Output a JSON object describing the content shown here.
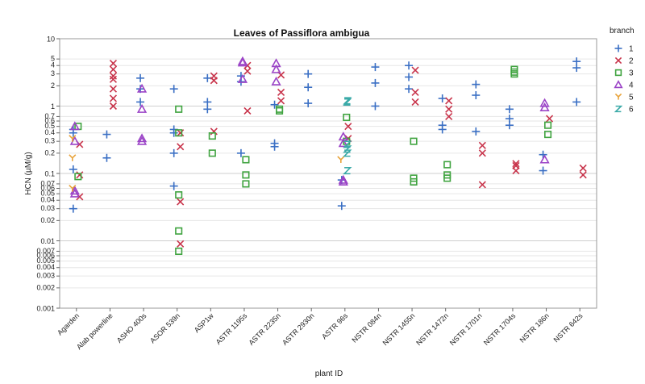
{
  "chart_data": {
    "type": "scatter",
    "title": "Leaves of Passiflora ambigua",
    "xlabel": "plant ID",
    "ylabel": "HCN (µM/g)",
    "yscale": "log",
    "ylim": [
      0.001,
      10
    ],
    "grid": "horizontal",
    "legend_title": "branch",
    "legend_position": "right",
    "yticks": [
      {
        "v": 10,
        "label": "10"
      },
      {
        "v": 5,
        "label": "5"
      },
      {
        "v": 4,
        "label": "4"
      },
      {
        "v": 3,
        "label": "3"
      },
      {
        "v": 2,
        "label": "2"
      },
      {
        "v": 1,
        "label": "1"
      },
      {
        "v": 0.7,
        "label": "0.7"
      },
      {
        "v": 0.6,
        "label": "0.6"
      },
      {
        "v": 0.5,
        "label": "0.5"
      },
      {
        "v": 0.4,
        "label": "0.4"
      },
      {
        "v": 0.3,
        "label": "0.3"
      },
      {
        "v": 0.2,
        "label": "0.2"
      },
      {
        "v": 0.1,
        "label": "0.1"
      },
      {
        "v": 0.07,
        "label": "0.07"
      },
      {
        "v": 0.06,
        "label": "0.06"
      },
      {
        "v": 0.05,
        "label": "0.05"
      },
      {
        "v": 0.04,
        "label": "0.04"
      },
      {
        "v": 0.03,
        "label": "0.03"
      },
      {
        "v": 0.02,
        "label": "0.02"
      },
      {
        "v": 0.01,
        "label": "0.01"
      },
      {
        "v": 0.007,
        "label": "0.007"
      },
      {
        "v": 0.006,
        "label": "0.006"
      },
      {
        "v": 0.005,
        "label": "0.005"
      },
      {
        "v": 0.004,
        "label": "0.004"
      },
      {
        "v": 0.003,
        "label": "0.003"
      },
      {
        "v": 0.002,
        "label": "0.002"
      },
      {
        "v": 0.001,
        "label": "0.001"
      }
    ],
    "categories": [
      "Agarden",
      "Alab powerline",
      "ASHO 400s",
      "ASOR 539n",
      "ASP1w",
      "ASTR 1195s",
      "ASTR 2235n",
      "ASTR 2930n",
      "ASTR 96s",
      "NSTR 084n",
      "NSTR 1455n",
      "NSTR 1472n",
      "NSTR 1701n",
      "NSTR 1704s",
      "NSTR 186n",
      "NSTR 642s"
    ],
    "series": [
      {
        "name": "1",
        "marker": "plus",
        "color": "#3a6fc4",
        "points": [
          [
            0,
            0.45
          ],
          [
            0,
            0.4
          ],
          [
            0,
            0.115
          ],
          [
            0,
            0.03
          ],
          [
            1,
            0.38
          ],
          [
            1,
            0.17
          ],
          [
            2,
            2.6
          ],
          [
            2,
            1.8
          ],
          [
            2,
            1.15
          ],
          [
            3,
            1.8
          ],
          [
            3,
            0.45
          ],
          [
            3,
            0.4
          ],
          [
            3,
            0.2
          ],
          [
            3,
            0.065
          ],
          [
            4,
            2.6
          ],
          [
            4,
            1.15
          ],
          [
            4,
            0.9
          ],
          [
            5,
            2.8
          ],
          [
            5,
            2.3
          ],
          [
            5,
            0.2
          ],
          [
            6,
            1.05
          ],
          [
            6,
            0.28
          ],
          [
            6,
            0.25
          ],
          [
            7,
            3.0
          ],
          [
            7,
            1.9
          ],
          [
            7,
            1.1
          ],
          [
            8,
            0.08
          ],
          [
            8,
            0.033
          ],
          [
            9,
            3.8
          ],
          [
            9,
            2.2
          ],
          [
            9,
            1.0
          ],
          [
            10,
            4.0
          ],
          [
            10,
            2.7
          ],
          [
            10,
            1.8
          ],
          [
            11,
            1.3
          ],
          [
            11,
            0.52
          ],
          [
            11,
            0.45
          ],
          [
            12,
            2.1
          ],
          [
            12,
            1.45
          ],
          [
            12,
            0.42
          ],
          [
            13,
            0.9
          ],
          [
            13,
            0.65
          ],
          [
            13,
            0.52
          ],
          [
            14,
            0.19
          ],
          [
            14,
            0.11
          ],
          [
            15,
            4.6
          ],
          [
            15,
            3.7
          ],
          [
            15,
            1.15
          ]
        ]
      },
      {
        "name": "2",
        "marker": "x",
        "color": "#c8344b",
        "points": [
          [
            0,
            0.27
          ],
          [
            0,
            0.095
          ],
          [
            0,
            0.045
          ],
          [
            1,
            4.3
          ],
          [
            1,
            3.5
          ],
          [
            1,
            2.8
          ],
          [
            1,
            2.5
          ],
          [
            1,
            1.8
          ],
          [
            1,
            1.3
          ],
          [
            1,
            1.0
          ],
          [
            3,
            0.4
          ],
          [
            3,
            0.25
          ],
          [
            3,
            0.038
          ],
          [
            3,
            0.009
          ],
          [
            4,
            2.8
          ],
          [
            4,
            2.4
          ],
          [
            4,
            0.42
          ],
          [
            5,
            4.0
          ],
          [
            5,
            3.3
          ],
          [
            5,
            0.85
          ],
          [
            6,
            2.9
          ],
          [
            6,
            1.6
          ],
          [
            6,
            1.2
          ],
          [
            8,
            0.5
          ],
          [
            8,
            0.33
          ],
          [
            10,
            3.4
          ],
          [
            10,
            1.6
          ],
          [
            10,
            1.15
          ],
          [
            11,
            1.2
          ],
          [
            11,
            0.9
          ],
          [
            11,
            0.7
          ],
          [
            12,
            0.26
          ],
          [
            12,
            0.2
          ],
          [
            12,
            0.068
          ],
          [
            13,
            0.14
          ],
          [
            13,
            0.13
          ],
          [
            13,
            0.11
          ],
          [
            14,
            0.65
          ],
          [
            15,
            0.12
          ],
          [
            15,
            0.095
          ]
        ]
      },
      {
        "name": "3",
        "marker": "square",
        "color": "#3fa33f",
        "points": [
          [
            0,
            0.5
          ],
          [
            0,
            0.09
          ],
          [
            3,
            0.9
          ],
          [
            3,
            0.4
          ],
          [
            3,
            0.048
          ],
          [
            3,
            0.014
          ],
          [
            3,
            0.007
          ],
          [
            4,
            0.36
          ],
          [
            4,
            0.2
          ],
          [
            5,
            0.16
          ],
          [
            5,
            0.095
          ],
          [
            5,
            0.07
          ],
          [
            6,
            0.9
          ],
          [
            6,
            0.85
          ],
          [
            8,
            0.68
          ],
          [
            8,
            0.3
          ],
          [
            10,
            0.3
          ],
          [
            10,
            0.085
          ],
          [
            10,
            0.075
          ],
          [
            11,
            0.135
          ],
          [
            11,
            0.095
          ],
          [
            11,
            0.085
          ],
          [
            13,
            3.5
          ],
          [
            13,
            3.2
          ],
          [
            13,
            3.0
          ],
          [
            14,
            0.52
          ],
          [
            14,
            0.38
          ]
        ]
      },
      {
        "name": "4",
        "marker": "triangle",
        "color": "#9b44c7",
        "points": [
          [
            0,
            0.5
          ],
          [
            0,
            0.3
          ],
          [
            0,
            0.055
          ],
          [
            0,
            0.05
          ],
          [
            2,
            1.8
          ],
          [
            2,
            0.9
          ],
          [
            2,
            0.33
          ],
          [
            2,
            0.3
          ],
          [
            5,
            4.6
          ],
          [
            5,
            4.4
          ],
          [
            5,
            2.5
          ],
          [
            6,
            4.3
          ],
          [
            6,
            3.5
          ],
          [
            6,
            2.3
          ],
          [
            8,
            0.35
          ],
          [
            8,
            0.28
          ],
          [
            8,
            0.08
          ],
          [
            8,
            0.075
          ],
          [
            14,
            1.1
          ],
          [
            14,
            0.95
          ],
          [
            14,
            0.16
          ]
        ]
      },
      {
        "name": "5",
        "marker": "y",
        "color": "#e8a33a",
        "points": [
          [
            0,
            0.33
          ],
          [
            0,
            0.17
          ],
          [
            0,
            0.06
          ],
          [
            8,
            0.16
          ]
        ]
      },
      {
        "name": "6",
        "marker": "z",
        "color": "#3aaaa8",
        "points": [
          [
            8,
            1.2
          ],
          [
            8,
            1.15
          ],
          [
            8,
            0.27
          ],
          [
            8,
            0.23
          ],
          [
            8,
            0.2
          ],
          [
            8,
            0.11
          ]
        ]
      }
    ]
  }
}
